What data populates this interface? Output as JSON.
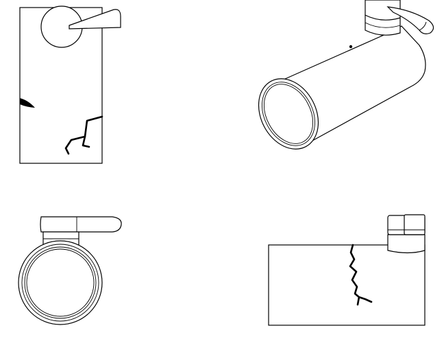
{
  "drawing": {
    "views": [
      {
        "id": "front-view",
        "has_crack": true
      },
      {
        "id": "isometric-view",
        "has_crack": false
      },
      {
        "id": "end-view",
        "has_crack": false
      },
      {
        "id": "side-view",
        "has_crack": true
      }
    ],
    "colors": {
      "line": "#000000",
      "background": "#ffffff"
    }
  }
}
